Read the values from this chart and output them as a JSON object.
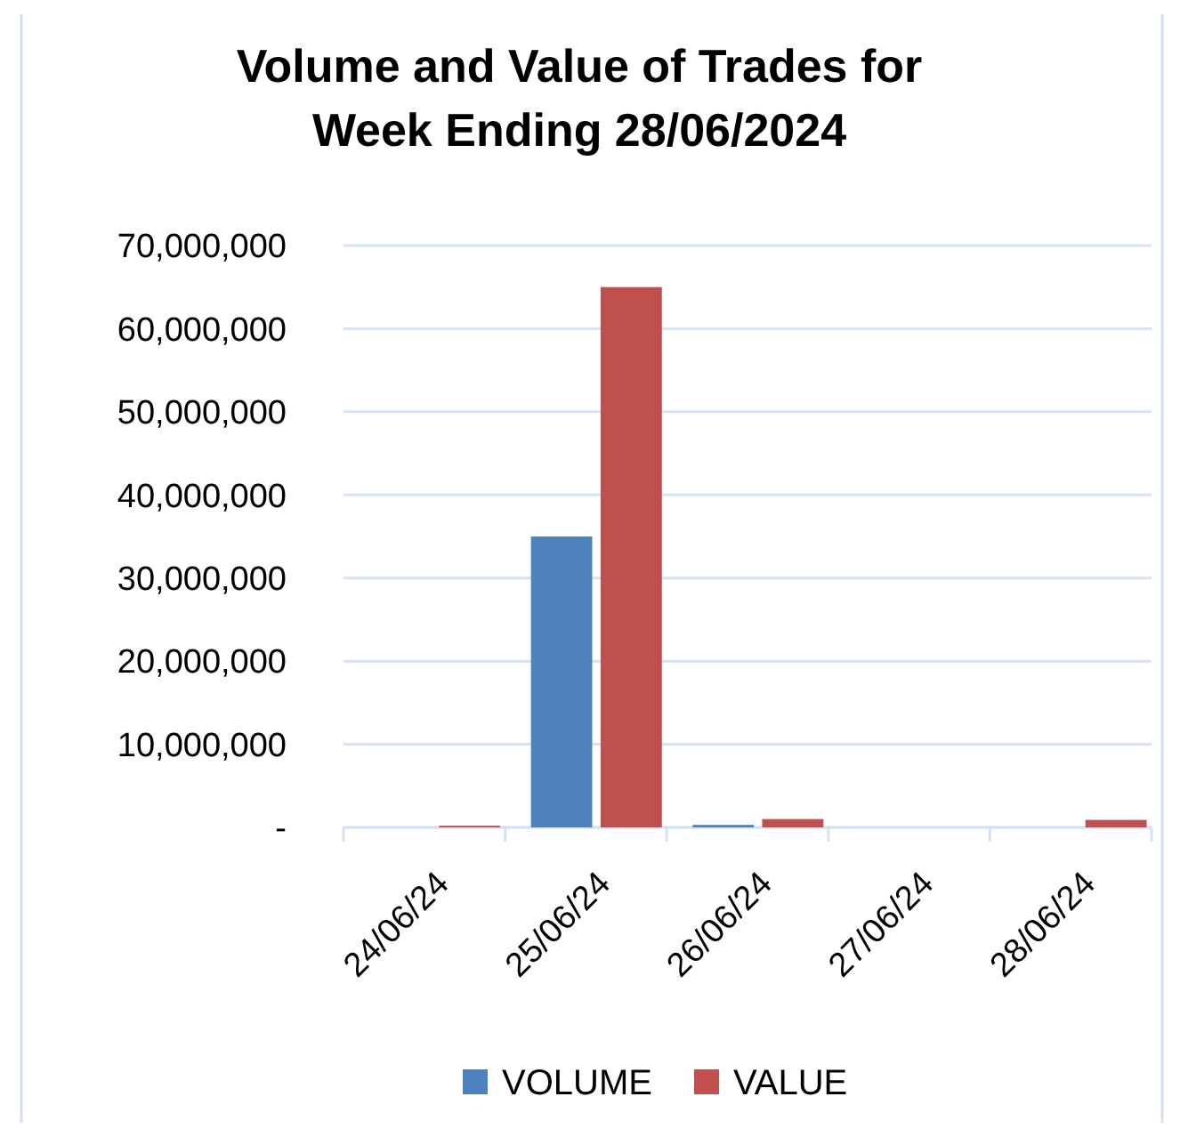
{
  "chart_data": {
    "type": "bar",
    "title": "Volume and Value of Trades for Week Ending 28/06/2024",
    "categories": [
      "24/06/24",
      "25/06/24",
      "26/06/24",
      "27/06/24",
      "28/06/24"
    ],
    "series": [
      {
        "name": "VOLUME",
        "color": "#4f81bd",
        "values": [
          0,
          35000000,
          300000,
          0,
          0
        ]
      },
      {
        "name": "VALUE",
        "color": "#c0504d",
        "values": [
          200000,
          65000000,
          1000000,
          0,
          900000
        ]
      }
    ],
    "ylim": [
      0,
      70000000
    ],
    "yticks": [
      {
        "value": 0,
        "label": "-"
      },
      {
        "value": 10000000,
        "label": "10,000,000"
      },
      {
        "value": 20000000,
        "label": "20,000,000"
      },
      {
        "value": 30000000,
        "label": "30,000,000"
      },
      {
        "value": 40000000,
        "label": "40,000,000"
      },
      {
        "value": 50000000,
        "label": "50,000,000"
      },
      {
        "value": 60000000,
        "label": "60,000,000"
      },
      {
        "value": 70000000,
        "label": "70,000,000"
      }
    ],
    "grid": "y",
    "legend": "bottom"
  }
}
